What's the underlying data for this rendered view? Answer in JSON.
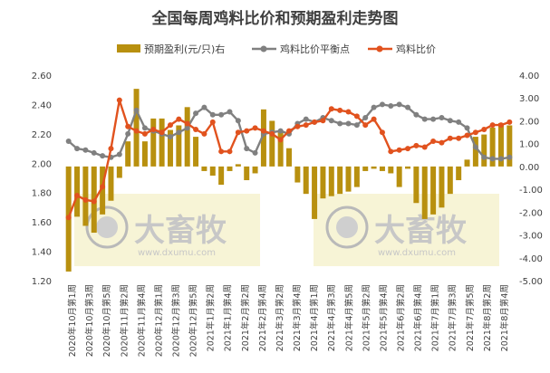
{
  "title": "全国每周鸡料比价和预期盈利走势图",
  "legend": {
    "profit": "预期盈利(元/只)右",
    "breakeven": "鸡料比价平衡点",
    "ratio": "鸡料比价"
  },
  "watermark": {
    "brand": "大畜牧",
    "url": "www.dxumu.com"
  },
  "colors": {
    "profit": "#b8900f",
    "breakeven": "#808080",
    "ratio": "#e1521e"
  },
  "chart_data": {
    "type": "bar",
    "title": "全国每周鸡料比价和预期盈利走势图",
    "xlabel": "",
    "ylabel": "",
    "ylim": [
      1.2,
      2.6
    ],
    "y2lim": [
      -5,
      4
    ],
    "left_ticks": [
      "1.20",
      "1.40",
      "1.60",
      "1.80",
      "2.00",
      "2.20",
      "2.40",
      "2.60"
    ],
    "right_ticks": [
      "-5.00",
      "-4.00",
      "-3.00",
      "-2.00",
      "-1.00",
      "0.00",
      "1.00",
      "2.00",
      "3.00",
      "4.00"
    ],
    "x_ticks": [
      "2020年10月第1周",
      "2020年10月第3周",
      "2020年10月第5周",
      "2020年11月第2周",
      "2020年11月第4周",
      "2020年12月第1周",
      "2020年12月第3周",
      "2020年12月第5周",
      "2021年1月第2周",
      "2021年1月第4周",
      "2021年2月第2周",
      "2021年2月第4周",
      "2021年3月第2周",
      "2021年3月第4周",
      "2021年4月第1周",
      "2021年4月第3周",
      "2021年4月第5周",
      "2021年5月第2周",
      "2021年5月第4周",
      "2021年6月第2周",
      "2021年6月第4周",
      "2021年7月第1周",
      "2021年7月第3周",
      "2021年7月第5周",
      "2021年8月第2周",
      "2021年8月第4周"
    ],
    "series": [
      {
        "name": "预期盈利(元/只)右",
        "type": "bar",
        "axis": "right",
        "values": [
          -4.6,
          -2.2,
          -2.6,
          -2.9,
          -2.1,
          -1.5,
          -0.5,
          1.1,
          3.4,
          1.1,
          2.1,
          2.1,
          1.6,
          1.8,
          2.6,
          1.3,
          -0.2,
          -0.4,
          -0.8,
          -0.2,
          0.1,
          -0.6,
          -0.3,
          2.5,
          2.0,
          1.5,
          0.8,
          -0.7,
          -1.2,
          -2.3,
          -1.4,
          -1.3,
          -1.2,
          -1.1,
          -0.9,
          -0.2,
          -0.1,
          -0.2,
          -0.3,
          -0.9,
          -0.1,
          -1.6,
          -2.3,
          -2.1,
          -1.8,
          -1.2,
          -0.6,
          0.3,
          1.3,
          1.4,
          1.7,
          1.9,
          1.8
        ]
      },
      {
        "name": "鸡料比价平衡点",
        "type": "line",
        "axis": "left",
        "values": [
          2.15,
          2.1,
          2.09,
          2.07,
          2.05,
          2.04,
          2.06,
          2.2,
          2.36,
          2.24,
          2.22,
          2.2,
          2.18,
          2.21,
          2.24,
          2.34,
          2.38,
          2.33,
          2.33,
          2.35,
          2.29,
          2.1,
          2.07,
          2.2,
          2.21,
          2.22,
          2.2,
          2.27,
          2.3,
          2.28,
          2.31,
          2.29,
          2.27,
          2.27,
          2.26,
          2.31,
          2.38,
          2.4,
          2.39,
          2.4,
          2.38,
          2.33,
          2.3,
          2.3,
          2.31,
          2.29,
          2.28,
          2.24,
          2.11,
          2.04,
          2.03,
          2.03,
          2.04
        ]
      },
      {
        "name": "鸡料比价",
        "type": "line",
        "axis": "left",
        "values": [
          1.63,
          1.78,
          1.75,
          1.74,
          1.84,
          2.1,
          2.43,
          2.25,
          2.22,
          2.2,
          2.23,
          2.21,
          2.26,
          2.3,
          2.27,
          2.23,
          2.2,
          2.28,
          2.08,
          2.08,
          2.21,
          2.22,
          2.24,
          2.22,
          2.2,
          2.16,
          2.22,
          2.25,
          2.26,
          2.28,
          2.29,
          2.37,
          2.36,
          2.35,
          2.32,
          2.26,
          2.3,
          2.21,
          2.08,
          2.09,
          2.1,
          2.12,
          2.11,
          2.15,
          2.14,
          2.17,
          2.17,
          2.19,
          2.21,
          2.23,
          2.26,
          2.26,
          2.28
        ]
      }
    ]
  }
}
